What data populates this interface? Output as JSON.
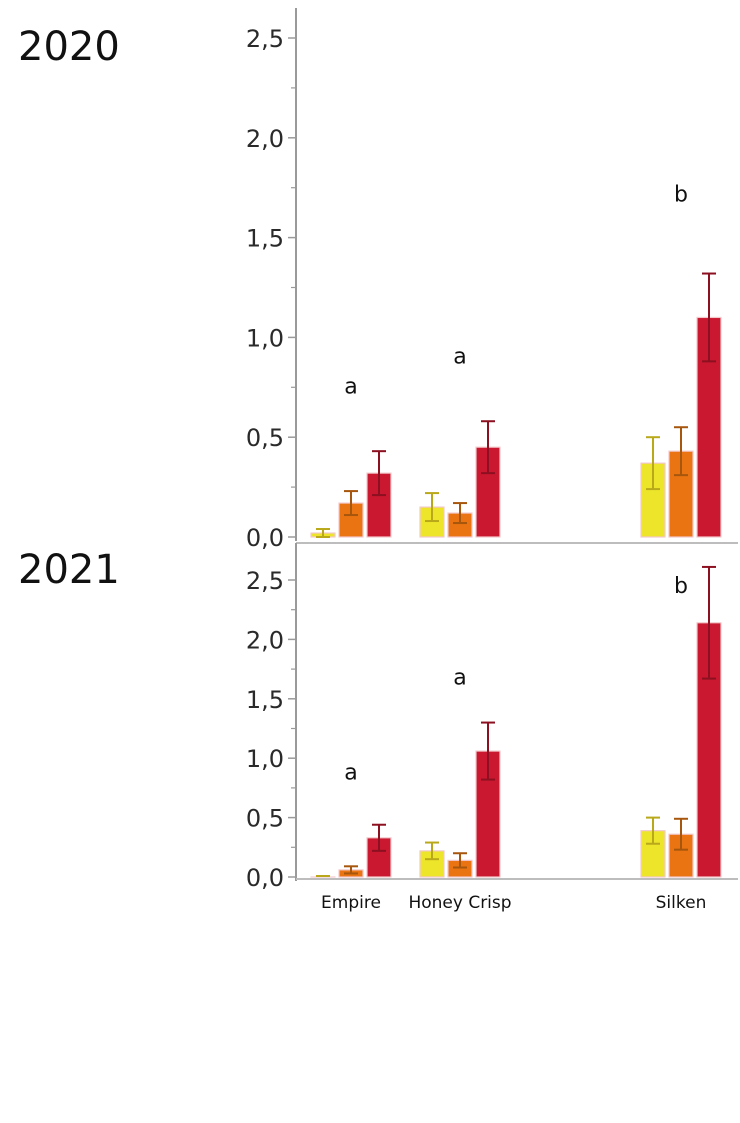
{
  "chart_data": [
    {
      "type": "bar",
      "title": "2020",
      "categories": [
        "Empire",
        "Honey Crisp",
        "Silken"
      ],
      "ylim": [
        0,
        2.5
      ],
      "yticks": [
        "0,0",
        "0,5",
        "1,0",
        "1,5",
        "2,0",
        "2,5"
      ],
      "colors": [
        "#ece52a",
        "#e97411",
        "#c9182f"
      ],
      "error_colors": [
        "#b8a81a",
        "#a7560d",
        "#8c1020"
      ],
      "series": [
        {
          "values": [
            0.02,
            0.15,
            0.37
          ],
          "errors": [
            0.02,
            0.07,
            0.13
          ]
        },
        {
          "values": [
            0.17,
            0.12,
            0.43
          ],
          "errors": [
            0.06,
            0.05,
            0.12
          ]
        },
        {
          "values": [
            0.32,
            0.45,
            1.1
          ],
          "errors": [
            0.11,
            0.13,
            0.22
          ]
        }
      ],
      "significance": [
        "a",
        "a",
        "b"
      ],
      "significance_y": [
        0.72,
        0.87,
        1.68
      ]
    },
    {
      "type": "bar",
      "title": "2021",
      "categories": [
        "Empire",
        "Honey Crisp",
        "Silken"
      ],
      "ylim": [
        0,
        2.5
      ],
      "yticks": [
        "0,0",
        "0,5",
        "1,0",
        "1,5",
        "2,0",
        "2,5"
      ],
      "colors": [
        "#ece52a",
        "#e97411",
        "#c9182f"
      ],
      "error_colors": [
        "#b8a81a",
        "#a7560d",
        "#8c1020"
      ],
      "series": [
        {
          "values": [
            0.0,
            0.22,
            0.39
          ],
          "errors": [
            0.0,
            0.07,
            0.11
          ]
        },
        {
          "values": [
            0.06,
            0.14,
            0.36
          ],
          "errors": [
            0.03,
            0.06,
            0.13
          ]
        },
        {
          "values": [
            0.33,
            1.06,
            2.14
          ],
          "errors": [
            0.11,
            0.24,
            0.47
          ]
        }
      ],
      "significance": [
        "a",
        "a",
        "b"
      ],
      "significance_y": [
        0.82,
        1.62,
        2.39
      ]
    }
  ]
}
